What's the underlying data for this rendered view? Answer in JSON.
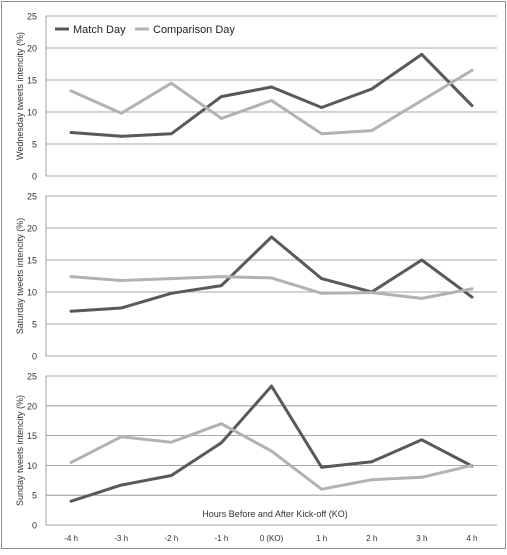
{
  "chart_data": [
    {
      "type": "line",
      "ylabel": "Wednesday tweets intencity (%)",
      "ylim": [
        0,
        25
      ],
      "yticks": [
        0,
        5,
        10,
        15,
        20,
        25
      ],
      "grid": true,
      "legend": "top-left",
      "series": [
        {
          "name": "Match Day",
          "color": "#595959",
          "values": [
            6.8,
            6.2,
            6.6,
            12.4,
            13.9,
            10.7,
            13.6,
            19.0,
            11.0
          ]
        },
        {
          "name": "Comparison Day",
          "color": "#b2b2b2",
          "values": [
            13.3,
            9.8,
            14.5,
            9.0,
            11.8,
            6.6,
            7.1,
            11.8,
            16.5
          ]
        }
      ]
    },
    {
      "type": "line",
      "ylabel": "Saturday tweets intencity (%)",
      "ylim": [
        0,
        25
      ],
      "yticks": [
        0,
        5,
        10,
        15,
        20,
        25
      ],
      "grid": true,
      "series": [
        {
          "name": "Match Day",
          "color": "#595959",
          "values": [
            7.0,
            7.5,
            9.8,
            11.0,
            18.6,
            12.1,
            10.0,
            15.0,
            9.2
          ]
        },
        {
          "name": "Comparison Day",
          "color": "#b2b2b2",
          "values": [
            12.4,
            11.8,
            12.1,
            12.4,
            12.2,
            9.8,
            9.9,
            9.0,
            10.5
          ]
        }
      ]
    },
    {
      "type": "line",
      "ylabel": "Sunday tweets intencity (%)",
      "xlabel": "Hours Before and After Kick-off (KO)",
      "categories": [
        "-4 h",
        "-3 h",
        "-2 h",
        "-1 h",
        "0 (KO)",
        "1 h",
        "2 h",
        "3 h",
        "4 h"
      ],
      "ylim": [
        0,
        25
      ],
      "yticks": [
        0,
        5,
        10,
        15,
        20,
        25
      ],
      "grid": true,
      "series": [
        {
          "name": "Match Day",
          "color": "#595959",
          "values": [
            4.0,
            6.7,
            8.3,
            13.8,
            23.3,
            9.7,
            10.6,
            14.3,
            9.9
          ]
        },
        {
          "name": "Comparison Day",
          "color": "#b2b2b2",
          "values": [
            10.5,
            14.8,
            13.9,
            17.0,
            12.4,
            6.0,
            7.6,
            8.0,
            10.0
          ]
        }
      ]
    }
  ]
}
